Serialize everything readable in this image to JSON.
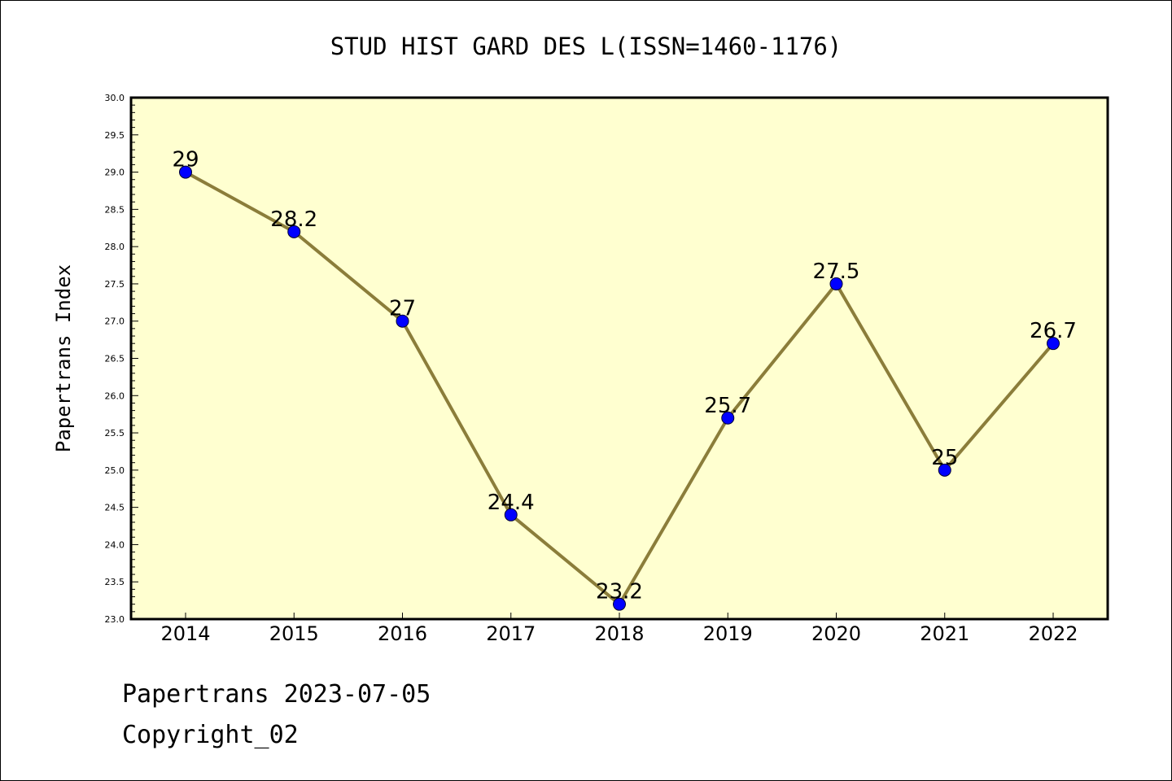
{
  "chart_data": {
    "type": "line",
    "title": "STUD HIST GARD DES L(ISSN=1460-1176)",
    "xlabel": "",
    "ylabel": "Papertrans Index",
    "x": [
      "2014",
      "2015",
      "2016",
      "2017",
      "2018",
      "2019",
      "2020",
      "2021",
      "2022"
    ],
    "values": [
      29,
      28.2,
      27,
      24.4,
      23.2,
      25.7,
      27.5,
      25,
      26.7
    ],
    "data_labels": [
      "29",
      "28.2",
      "27",
      "24.4",
      "23.2",
      "25.7",
      "27.5",
      "25",
      "26.7"
    ],
    "ylim": [
      23.0,
      30.0
    ],
    "yticks": [
      "23.0",
      "23.5",
      "24.0",
      "24.5",
      "25.0",
      "25.5",
      "26.0",
      "26.5",
      "27.0",
      "27.5",
      "28.0",
      "28.5",
      "29.0",
      "29.5",
      "30.0"
    ],
    "grid": false,
    "colors": {
      "line": "#8B7D3A",
      "marker": "#0000FF",
      "plot_background": "#FFFFD0"
    }
  },
  "footer": {
    "line1": "Papertrans 2023-07-05",
    "line2": "Copyright_02"
  }
}
